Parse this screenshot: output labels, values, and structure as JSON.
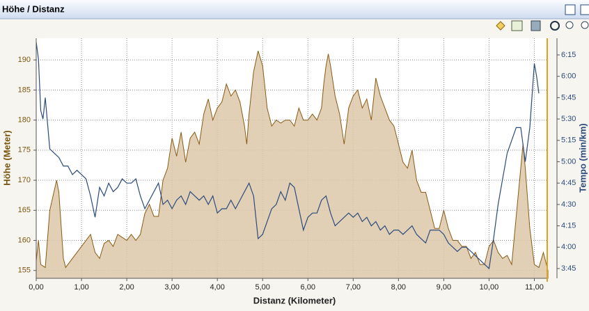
{
  "chart_data": {
    "type": "area-line",
    "title": "Höhe / Distanz",
    "x_label": "Distanz (Kilometer)",
    "y_label": "Höhe (Meter)",
    "y2_label": "Tempo (min/km)",
    "xlim": [
      0,
      11.3
    ],
    "ylim": [
      153.7,
      193.6
    ],
    "y2lim": [
      3.636,
      6.445
    ],
    "grid": true,
    "xticks": [
      {
        "value": 0,
        "label": "0,00"
      },
      {
        "value": 1,
        "label": "1,00"
      },
      {
        "value": 2,
        "label": "2,00"
      },
      {
        "value": 3,
        "label": "3,00"
      },
      {
        "value": 4,
        "label": "4,00"
      },
      {
        "value": 5,
        "label": "5,00"
      },
      {
        "value": 6,
        "label": "6,00"
      },
      {
        "value": 7,
        "label": "7,00"
      },
      {
        "value": 8,
        "label": "8,00"
      },
      {
        "value": 9,
        "label": "9,00"
      },
      {
        "value": 10,
        "label": "10,00"
      },
      {
        "value": 11,
        "label": "11,00"
      }
    ],
    "yticks": [
      155,
      160,
      165,
      170,
      175,
      180,
      185,
      190
    ],
    "y2ticks": [
      {
        "value": 3.75,
        "label": "3:45"
      },
      {
        "value": 4,
        "label": "4:00"
      },
      {
        "value": 4.25,
        "label": "4:15"
      },
      {
        "value": 4.5,
        "label": "4:30"
      },
      {
        "value": 4.75,
        "label": "4:45"
      },
      {
        "value": 5,
        "label": "5:00"
      },
      {
        "value": 5.25,
        "label": "5:15"
      },
      {
        "value": 5.5,
        "label": "5:30"
      },
      {
        "value": 5.75,
        "label": "5:45"
      },
      {
        "value": 6,
        "label": "6:00"
      },
      {
        "value": 6.25,
        "label": "6:15"
      }
    ],
    "series": [
      {
        "kind": "area",
        "color": "#8a5a12",
        "fill": "#dcc8a9",
        "x": [
          0,
          0.05,
          0.1,
          0.2,
          0.3,
          0.45,
          0.5,
          0.6,
          0.65,
          0.8,
          1,
          1.1,
          1.2,
          1.3,
          1.4,
          1.5,
          1.6,
          1.7,
          1.8,
          1.9,
          2,
          2.1,
          2.2,
          2.3,
          2.4,
          2.5,
          2.6,
          2.7,
          2.8,
          2.9,
          3,
          3.1,
          3.2,
          3.3,
          3.4,
          3.5,
          3.6,
          3.7,
          3.8,
          3.9,
          4,
          4.1,
          4.2,
          4.3,
          4.4,
          4.5,
          4.6,
          4.65,
          4.7,
          4.8,
          4.9,
          5,
          5.1,
          5.2,
          5.3,
          5.4,
          5.5,
          5.6,
          5.7,
          5.8,
          5.9,
          6,
          6.1,
          6.2,
          6.3,
          6.35,
          6.4,
          6.45,
          6.5,
          6.6,
          6.7,
          6.8,
          6.9,
          7,
          7.1,
          7.2,
          7.3,
          7.4,
          7.5,
          7.6,
          7.7,
          7.8,
          7.9,
          8,
          8.1,
          8.2,
          8.3,
          8.4,
          8.5,
          8.6,
          8.7,
          8.8,
          8.9,
          9,
          9.1,
          9.2,
          9.3,
          9.4,
          9.5,
          9.6,
          9.7,
          9.8,
          9.9,
          10,
          10.1,
          10.2,
          10.3,
          10.4,
          10.5,
          10.6,
          10.7,
          10.75,
          10.8,
          10.9,
          11,
          11.1,
          11.2,
          11.3
        ],
        "values": [
          156.6,
          160,
          156,
          155.5,
          165,
          170,
          168,
          157,
          155.5,
          157,
          159,
          160,
          161,
          158,
          157,
          159.5,
          160,
          159,
          161,
          160.5,
          160,
          161,
          160,
          161,
          164.5,
          166,
          164,
          164,
          170,
          172,
          177,
          174,
          178,
          173,
          177,
          178,
          176,
          181,
          183.5,
          180,
          182,
          183,
          186,
          184,
          185,
          183,
          179,
          176,
          181,
          188,
          191.5,
          189,
          182,
          179,
          180,
          179.5,
          180,
          180,
          179,
          182,
          180,
          180,
          181,
          180,
          182,
          186,
          189,
          191,
          189,
          184,
          181,
          176,
          182,
          184,
          185,
          182,
          183.5,
          180,
          187,
          184,
          182,
          180,
          179,
          176,
          173,
          172,
          175,
          170,
          168,
          168,
          165,
          162,
          162,
          165,
          162,
          160,
          160,
          159,
          159,
          157,
          158,
          156,
          156,
          159,
          160,
          158,
          157,
          157.5,
          156,
          164,
          172,
          176,
          172,
          162,
          156,
          155.5,
          158,
          155
        ]
      },
      {
        "kind": "line",
        "axis": "y2",
        "color": "#2b4a7c",
        "x": [
          0,
          0.05,
          0.1,
          0.15,
          0.2,
          0.3,
          0.4,
          0.5,
          0.6,
          0.7,
          0.8,
          0.9,
          1,
          1.1,
          1.2,
          1.3,
          1.4,
          1.5,
          1.6,
          1.7,
          1.8,
          1.9,
          2,
          2.1,
          2.2,
          2.3,
          2.4,
          2.5,
          2.6,
          2.7,
          2.8,
          2.9,
          3,
          3.1,
          3.2,
          3.3,
          3.4,
          3.5,
          3.6,
          3.7,
          3.8,
          3.9,
          4,
          4.1,
          4.2,
          4.3,
          4.4,
          4.5,
          4.6,
          4.7,
          4.8,
          4.9,
          5,
          5.1,
          5.2,
          5.3,
          5.4,
          5.5,
          5.6,
          5.7,
          5.8,
          5.9,
          6,
          6.1,
          6.2,
          6.3,
          6.4,
          6.5,
          6.6,
          6.7,
          6.8,
          6.9,
          7,
          7.1,
          7.2,
          7.3,
          7.4,
          7.5,
          7.6,
          7.7,
          7.8,
          7.9,
          8,
          8.1,
          8.2,
          8.3,
          8.4,
          8.5,
          8.6,
          8.7,
          8.8,
          8.9,
          9,
          9.1,
          9.2,
          9.3,
          9.4,
          9.5,
          9.6,
          9.7,
          9.8,
          9.9,
          10,
          10.1,
          10.2,
          10.3,
          10.4,
          10.5,
          10.6,
          10.7,
          10.8,
          10.9,
          11,
          11.05,
          11.1
        ],
        "values": [
          6.4,
          6.2,
          5.6,
          5.5,
          5.75,
          5.15,
          5.1,
          5.05,
          4.95,
          4.95,
          4.85,
          4.9,
          4.85,
          4.8,
          4.6,
          4.35,
          4.7,
          4.6,
          4.75,
          4.65,
          4.7,
          4.8,
          4.75,
          4.75,
          4.8,
          4.6,
          4.45,
          4.55,
          4.65,
          4.75,
          4.5,
          4.55,
          4.45,
          4.55,
          4.6,
          4.5,
          4.65,
          4.6,
          4.55,
          4.6,
          4.5,
          4.6,
          4.4,
          4.45,
          4.45,
          4.55,
          4.45,
          4.55,
          4.65,
          4.75,
          4.6,
          4.1,
          4.15,
          4.3,
          4.45,
          4.5,
          4.65,
          4.55,
          4.75,
          4.7,
          4.45,
          4.2,
          4.35,
          4.4,
          4.4,
          4.55,
          4.6,
          4.4,
          4.25,
          4.3,
          4.35,
          4.4,
          4.35,
          4.4,
          4.3,
          4.35,
          4.25,
          4.3,
          4.2,
          4.25,
          4.15,
          4.2,
          4.2,
          4.15,
          4.2,
          4.25,
          4.15,
          4.1,
          4.05,
          4.2,
          4.2,
          4.2,
          4.15,
          4.05,
          4,
          3.95,
          4,
          4,
          3.95,
          3.9,
          3.85,
          3.8,
          3.75,
          4.1,
          4.5,
          4.8,
          5.1,
          5.25,
          5.4,
          5.4,
          5,
          5.4,
          6.15,
          6,
          5.8
        ]
      }
    ]
  }
}
